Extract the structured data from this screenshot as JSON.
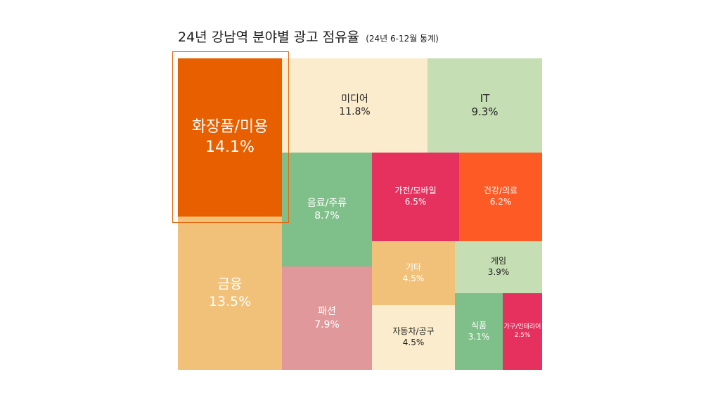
{
  "title": "24년 강남역 분야별 광고 점유율",
  "subtitle": "(24년 6-12월 통계)",
  "chart_data": {
    "type": "treemap",
    "title": "24년 강남역 분야별 광고 점유율",
    "subtitle": "(24년 6-12월 통계)",
    "unit": "%",
    "highlighted": "화장품/미용",
    "items": [
      {
        "label": "화장품/미용",
        "value": 14.1,
        "display": "14.1%",
        "color": "#e85f00",
        "text_color": "#ffffff"
      },
      {
        "label": "금융",
        "value": 13.5,
        "display": "13.5%",
        "color": "#f2c179",
        "text_color": "#ffffff"
      },
      {
        "label": "미디어",
        "value": 11.8,
        "display": "11.8%",
        "color": "#faeccc",
        "text_color": "#222222"
      },
      {
        "label": "IT",
        "value": 9.3,
        "display": "9.3%",
        "color": "#c5deb3",
        "text_color": "#222222"
      },
      {
        "label": "음료/주류",
        "value": 8.7,
        "display": "8.7%",
        "color": "#7fbf89",
        "text_color": "#ffffff"
      },
      {
        "label": "패션",
        "value": 7.9,
        "display": "7.9%",
        "color": "#e1989a",
        "text_color": "#ffffff"
      },
      {
        "label": "가전/모바일",
        "value": 6.5,
        "display": "6.5%",
        "color": "#e6305e",
        "text_color": "#ffffff"
      },
      {
        "label": "건강/의료",
        "value": 6.2,
        "display": "6.2%",
        "color": "#fe5a26",
        "text_color": "#ffffff"
      },
      {
        "label": "기타",
        "value": 4.5,
        "display": "4.5%",
        "color": "#f2c179",
        "text_color": "#ffffff"
      },
      {
        "label": "자동차/공구",
        "value": 4.5,
        "display": "4.5%",
        "color": "#faeccc",
        "text_color": "#222222"
      },
      {
        "label": "게임",
        "value": 3.9,
        "display": "3.9%",
        "color": "#c5deb3",
        "text_color": "#222222"
      },
      {
        "label": "식품",
        "value": 3.1,
        "display": "3.1%",
        "color": "#7fbf89",
        "text_color": "#ffffff"
      },
      {
        "label": "가구/인테리어",
        "value": 2.5,
        "display": "2.5%",
        "color": "#e6305e",
        "text_color": "#ffffff"
      }
    ]
  }
}
